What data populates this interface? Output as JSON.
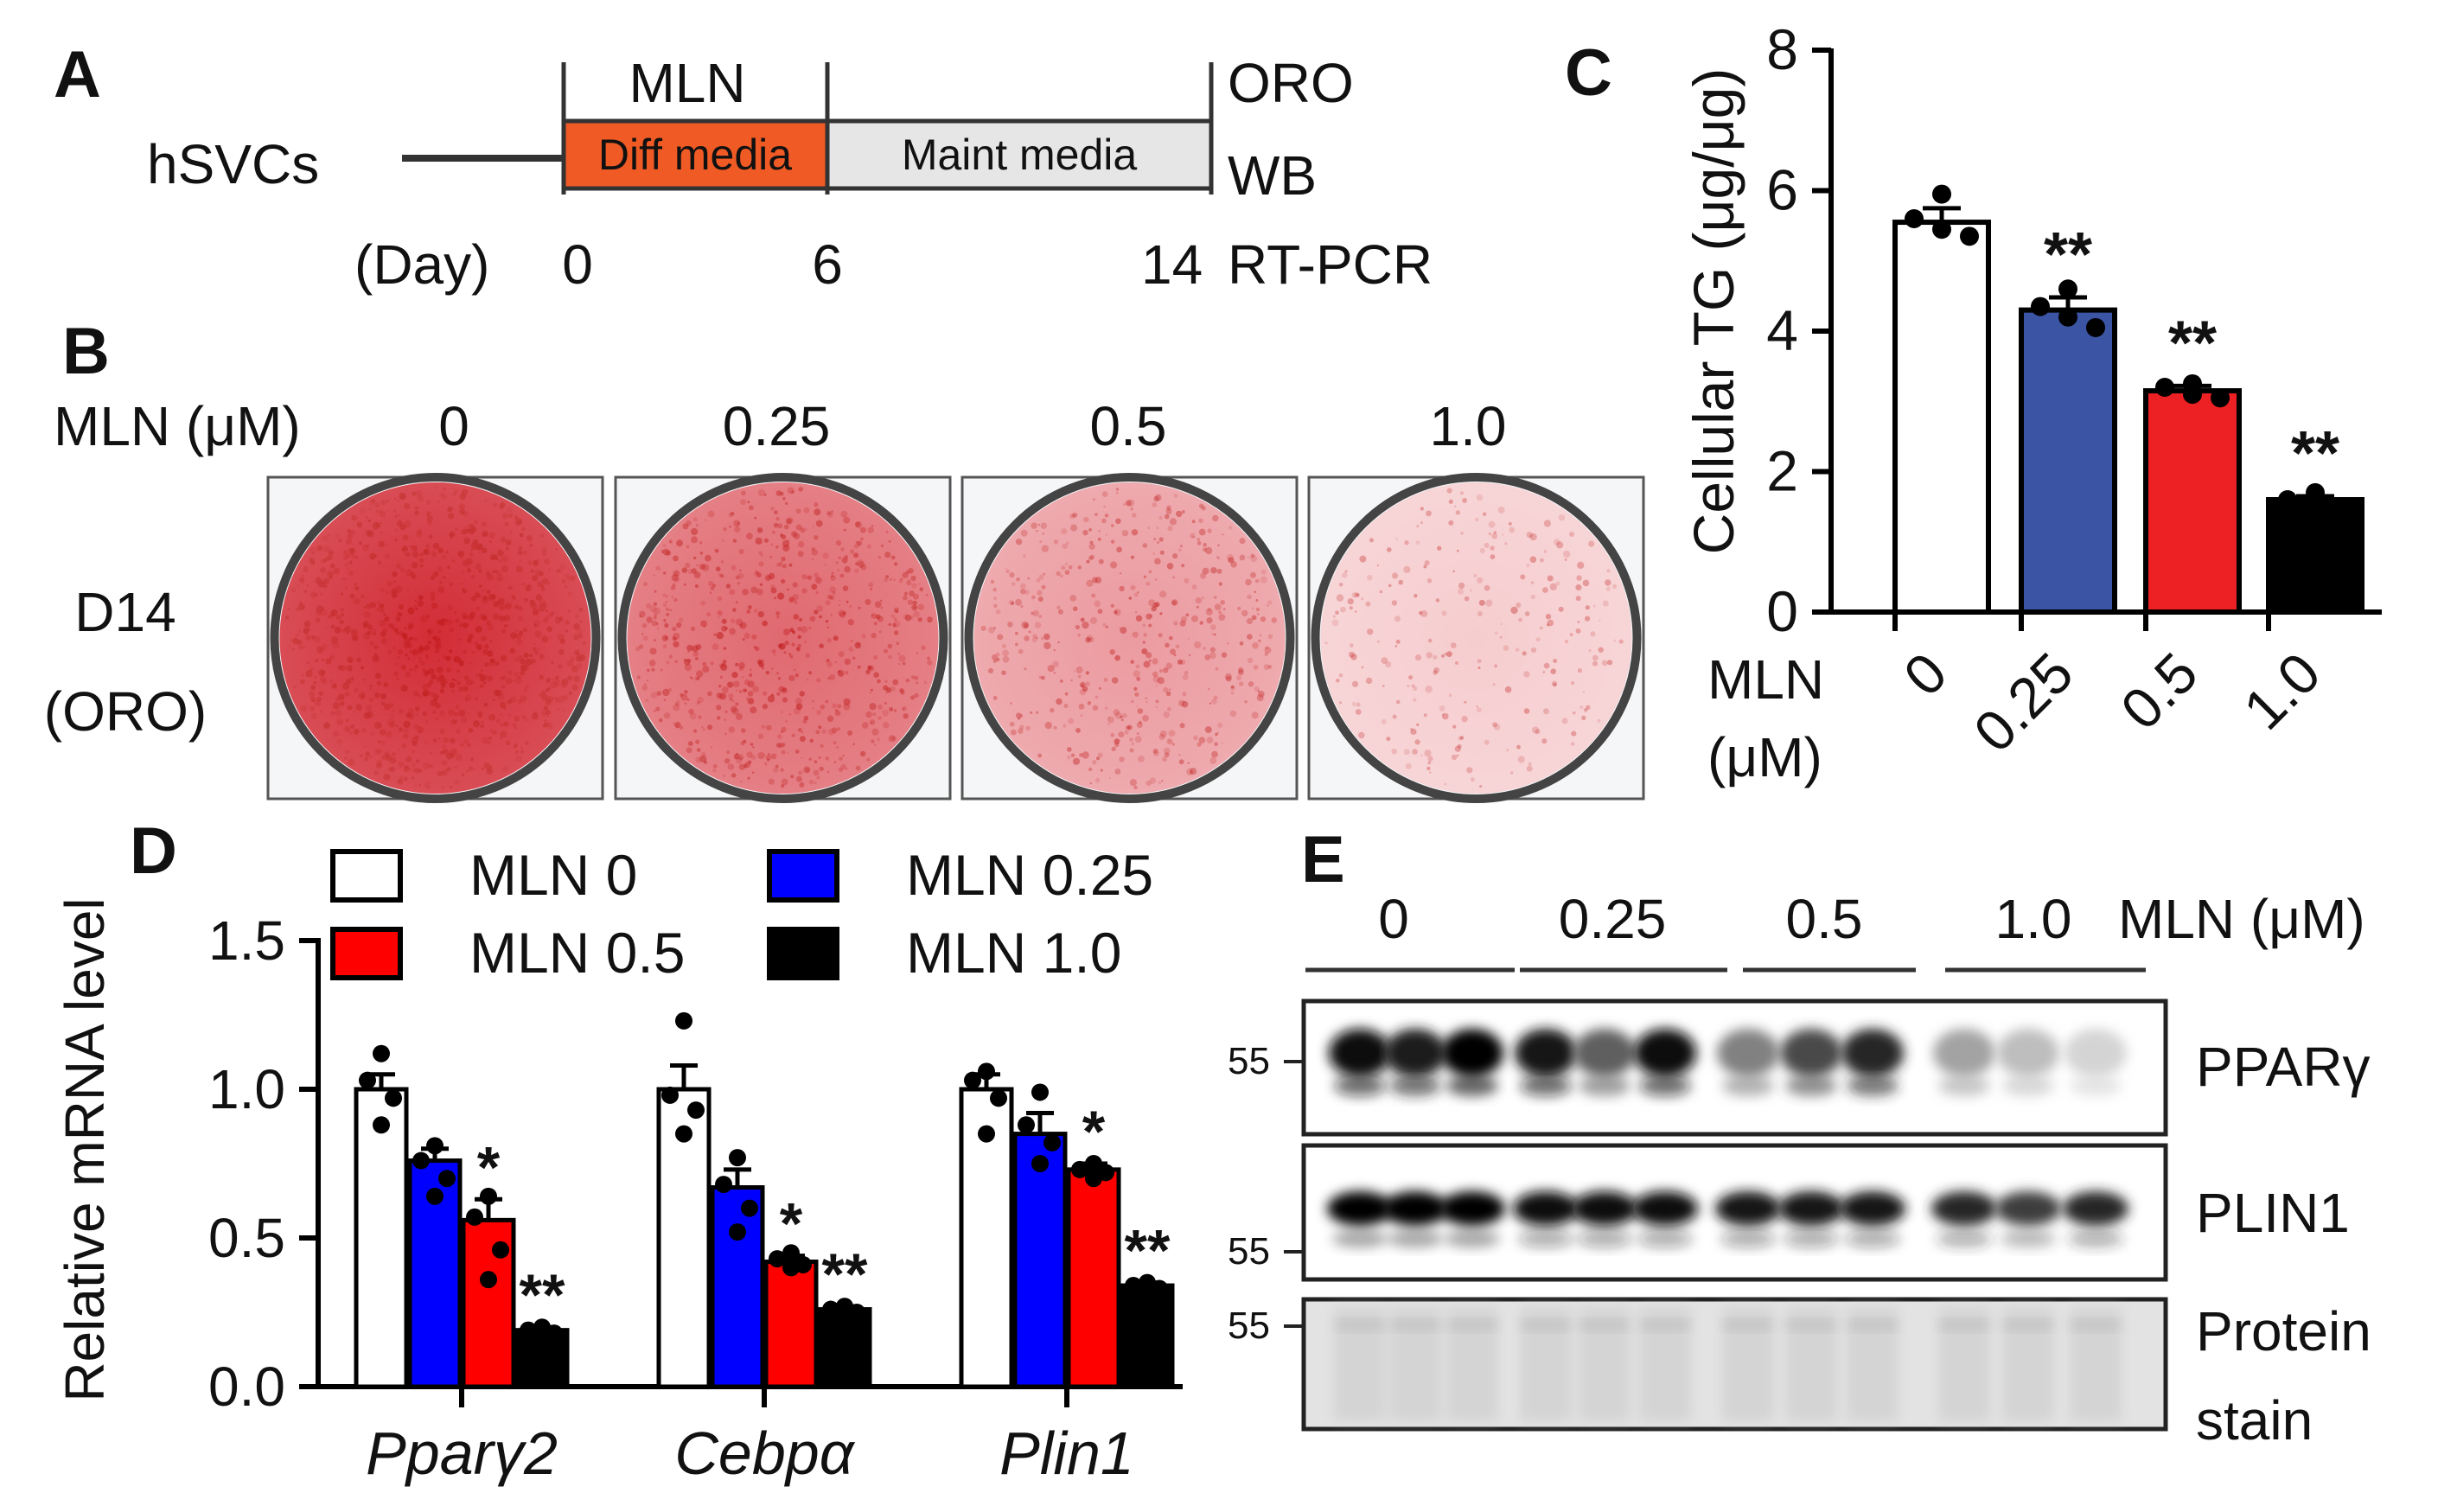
{
  "panels": {
    "a": "A",
    "b": "B",
    "c": "C",
    "d": "D",
    "e": "E"
  },
  "panel_a": {
    "cells": "hSVCs",
    "treatment": "MLN",
    "diff_media": "Diff media",
    "maint_media": "Maint media",
    "day_label": "(Day)",
    "days": [
      "0",
      "6",
      "14"
    ],
    "assays": [
      "ORO",
      "WB",
      "RT-PCR"
    ],
    "colors": {
      "diff": "#f05a24",
      "maint": "#e6e6e6"
    }
  },
  "panel_b": {
    "header": "MLN (μM)",
    "doses": [
      "0",
      "0.25",
      "0.5",
      "1.0"
    ],
    "row_label_1": "D14",
    "row_label_2": "(ORO)",
    "stain_intensity": [
      1.0,
      0.7,
      0.45,
      0.2
    ]
  },
  "chart_data": [
    {
      "id": "C",
      "type": "bar",
      "title": "",
      "ylabel": "Cellular TG (μg/μg)",
      "xlabel_1": "MLN",
      "xlabel_2": "(μM)",
      "categories": [
        "0",
        "0.25",
        "0.5",
        "1.0"
      ],
      "values": [
        5.55,
        4.3,
        3.15,
        1.6
      ],
      "errors": [
        0.2,
        0.18,
        0.07,
        0.05
      ],
      "points": [
        [
          5.95,
          5.6,
          5.45,
          5.35
        ],
        [
          4.6,
          4.35,
          4.2,
          4.05
        ],
        [
          3.25,
          3.2,
          3.1,
          3.05
        ],
        [
          1.7,
          1.6,
          1.55,
          1.5
        ]
      ],
      "significance": [
        "",
        "**",
        "**",
        "**"
      ],
      "colors": [
        "#ffffff",
        "#3b54a4",
        "#ed2024",
        "#000000"
      ],
      "ylim": [
        0,
        8
      ],
      "yticks": [
        "0",
        "2",
        "4",
        "6",
        "8"
      ]
    },
    {
      "id": "D",
      "type": "bar",
      "title": "",
      "ylabel": "Relative mRNA level",
      "categories": [
        "Pparγ2",
        "Cebpα",
        "Plin1"
      ],
      "series": [
        {
          "name": "MLN 0",
          "values": [
            1.0,
            1.0,
            1.0
          ],
          "errors": [
            0.05,
            0.08,
            0.05
          ],
          "color": "#ffffff",
          "points": [
            [
              1.12,
              1.03,
              0.97,
              0.88
            ],
            [
              1.23,
              0.98,
              0.93,
              0.85
            ],
            [
              1.06,
              1.03,
              0.97,
              0.85
            ]
          ]
        },
        {
          "name": "MLN 0.25",
          "values": [
            0.76,
            0.67,
            0.85
          ],
          "errors": [
            0.04,
            0.06,
            0.07
          ],
          "color": "#0000ff",
          "points": [
            [
              0.81,
              0.76,
              0.7,
              0.64
            ],
            [
              0.77,
              0.68,
              0.6,
              0.52
            ],
            [
              0.99,
              0.88,
              0.82,
              0.75
            ]
          ]
        },
        {
          "name": "MLN 0.5",
          "values": [
            0.56,
            0.42,
            0.73
          ],
          "errors": [
            0.07,
            0.02,
            0.02
          ],
          "color": "#ff0000",
          "points": [
            [
              0.64,
              0.57,
              0.46,
              0.36
            ],
            [
              0.45,
              0.43,
              0.41,
              0.4
            ],
            [
              0.75,
              0.73,
              0.72,
              0.7
            ]
          ]
        },
        {
          "name": "MLN 1.0",
          "values": [
            0.19,
            0.26,
            0.34
          ],
          "errors": [
            0.01,
            0.01,
            0.01
          ],
          "color": "#000000",
          "points": [
            [
              0.2,
              0.19,
              0.18,
              0.17
            ],
            [
              0.27,
              0.26,
              0.25,
              0.24
            ],
            [
              0.35,
              0.34,
              0.33,
              0.32
            ]
          ]
        }
      ],
      "significance": [
        [
          "",
          "",
          "*",
          "**"
        ],
        [
          "",
          "",
          "*",
          "**"
        ],
        [
          "",
          "",
          "*",
          "**"
        ]
      ],
      "ylim": [
        0,
        1.5
      ],
      "yticks": [
        "0.0",
        "0.5",
        "1.0",
        "1.5"
      ]
    }
  ],
  "panel_e": {
    "doses": [
      "0",
      "0.25",
      "0.5",
      "1.0"
    ],
    "dose_unit": "MLN (μM)",
    "marker": "55",
    "blots": [
      {
        "label": "PPARγ",
        "intensities": [
          0.95,
          0.9,
          1.0,
          0.92,
          0.6,
          0.95,
          0.45,
          0.7,
          0.85,
          0.3,
          0.18,
          0.08
        ]
      },
      {
        "label": "PLIN1",
        "intensities": [
          1.0,
          1.0,
          1.0,
          0.95,
          0.95,
          0.95,
          0.92,
          0.92,
          0.92,
          0.85,
          0.75,
          0.85
        ]
      }
    ],
    "stain_label_1": "Protein",
    "stain_label_2": "stain"
  }
}
